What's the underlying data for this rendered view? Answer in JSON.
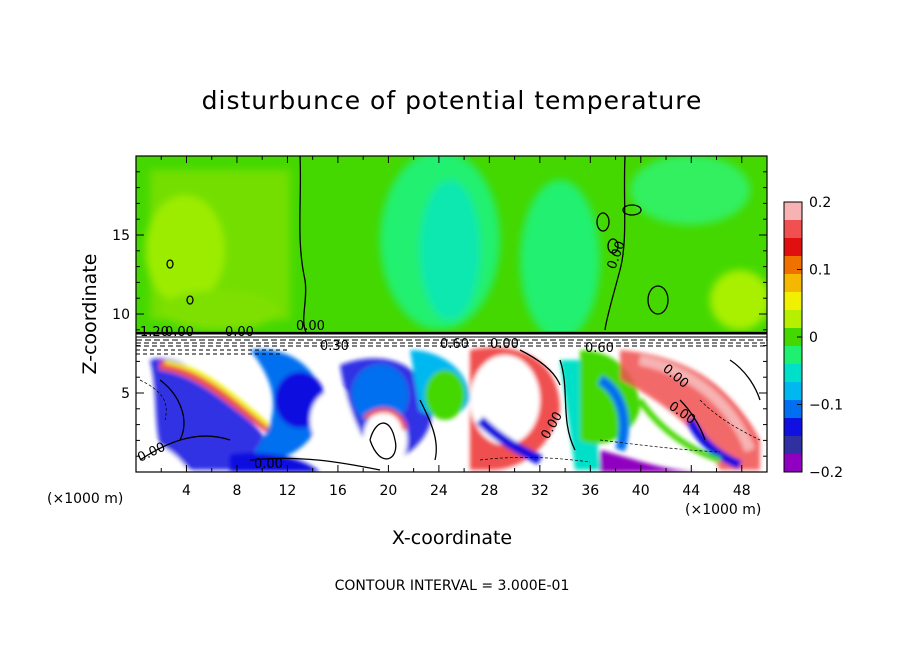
{
  "chart_data": {
    "type": "heatmap",
    "title": "disturbunce of potential temperature",
    "xlabel": "X-coordinate",
    "ylabel": "Z-coordinate",
    "x_unit": "(×1000 m)",
    "z_unit": "(×1000 m)",
    "xlim": [
      0,
      50
    ],
    "ylim": [
      0,
      20
    ],
    "x_ticks": [
      4,
      8,
      12,
      16,
      20,
      24,
      28,
      32,
      36,
      40,
      44,
      48
    ],
    "y_ticks": [
      5,
      10,
      15
    ],
    "colorbar": {
      "range": [
        -0.2,
        0.2
      ],
      "tick_values": [
        0.2,
        0.1,
        0,
        -0.1,
        -0.2
      ],
      "tick_labels": [
        "0.2",
        "0.1",
        "0",
        "−0.1",
        "−0.2"
      ],
      "colors": [
        "#f7b3b3",
        "#f05050",
        "#e01010",
        "#f07000",
        "#f4b800",
        "#f0f000",
        "#b6f000",
        "#44d800",
        "#20f070",
        "#00e0c8",
        "#00b8f0",
        "#0070f0",
        "#1010e0",
        "#3030a0",
        "#9000c0"
      ]
    },
    "contour_interval": "CONTOUR INTERVAL = 3.000E-01",
    "contour_labels": [
      "0.00",
      "0.00",
      "0.00",
      "0.00",
      "0.00",
      "0.00",
      "0.00",
      "0.00",
      "0.30",
      "0.60",
      "0.60",
      "1.20",
      "0.00",
      "0.00"
    ]
  }
}
